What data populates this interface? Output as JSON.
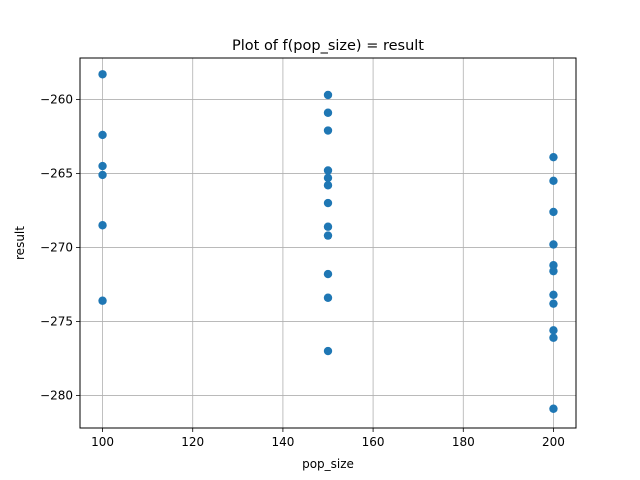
{
  "chart_data": {
    "type": "scatter",
    "title": "Plot of f(pop_size) = result",
    "xlabel": "pop_size",
    "ylabel": "result",
    "xlim": [
      95,
      205
    ],
    "ylim": [
      -282.2,
      -257.2
    ],
    "xticks": [
      100,
      120,
      140,
      160,
      180,
      200
    ],
    "xtick_labels": [
      "100",
      "120",
      "140",
      "160",
      "180",
      "200"
    ],
    "yticks": [
      -280,
      -275,
      -270,
      -265,
      -260
    ],
    "ytick_labels": [
      "−280",
      "−275",
      "−270",
      "−265",
      "−260"
    ],
    "grid": true,
    "series": [
      {
        "color": "#1f77b4",
        "points": [
          {
            "x": 100,
            "y": -258.3
          },
          {
            "x": 100,
            "y": -262.4
          },
          {
            "x": 100,
            "y": -264.5
          },
          {
            "x": 100,
            "y": -265.1
          },
          {
            "x": 100,
            "y": -268.5
          },
          {
            "x": 100,
            "y": -273.6
          },
          {
            "x": 150,
            "y": -259.7
          },
          {
            "x": 150,
            "y": -260.9
          },
          {
            "x": 150,
            "y": -262.1
          },
          {
            "x": 150,
            "y": -264.8
          },
          {
            "x": 150,
            "y": -265.3
          },
          {
            "x": 150,
            "y": -265.8
          },
          {
            "x": 150,
            "y": -267.0
          },
          {
            "x": 150,
            "y": -268.6
          },
          {
            "x": 150,
            "y": -269.2
          },
          {
            "x": 150,
            "y": -271.8
          },
          {
            "x": 150,
            "y": -273.4
          },
          {
            "x": 150,
            "y": -277.0
          },
          {
            "x": 200,
            "y": -263.9
          },
          {
            "x": 200,
            "y": -265.5
          },
          {
            "x": 200,
            "y": -267.6
          },
          {
            "x": 200,
            "y": -269.8
          },
          {
            "x": 200,
            "y": -271.2
          },
          {
            "x": 200,
            "y": -271.6
          },
          {
            "x": 200,
            "y": -273.2
          },
          {
            "x": 200,
            "y": -273.8
          },
          {
            "x": 200,
            "y": -275.6
          },
          {
            "x": 200,
            "y": -276.1
          },
          {
            "x": 200,
            "y": -280.9
          }
        ]
      }
    ]
  }
}
